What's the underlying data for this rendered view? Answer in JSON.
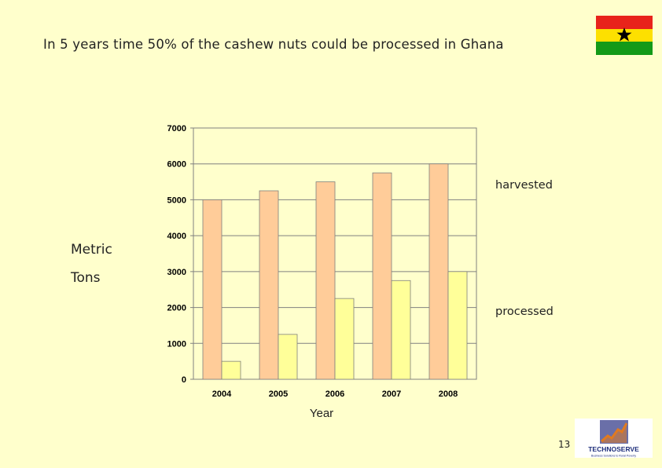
{
  "slide": {
    "title": "In 5 years time 50% of the cashew nuts could be processed in Ghana",
    "page_number": "13",
    "ylabel_line1": "Metric",
    "ylabel_line2": "Tons",
    "xlabel": "Year",
    "harvested_label": "harvested",
    "processed_label": "processed"
  },
  "flag": {
    "icon": "ghana-flag-icon",
    "colors": [
      "#e8231b",
      "#fde000",
      "#139a18"
    ],
    "star_color": "#000000"
  },
  "logo": {
    "icon": "technoserve-logo-icon",
    "text": "TECHNOSERVE",
    "tagline": "Business Solutions to Rural Poverty",
    "colors": {
      "text": "#1d2d7a",
      "graph": "#e07a20",
      "box": "#6a6fa8"
    }
  },
  "chart_data": {
    "type": "bar",
    "categories": [
      "2004",
      "2005",
      "2006",
      "2007",
      "2008"
    ],
    "series": [
      {
        "name": "harvested",
        "values": [
          5000,
          5250,
          5500,
          5750,
          6000
        ],
        "color": "#ffcc99"
      },
      {
        "name": "processed",
        "values": [
          500,
          1250,
          2250,
          2750,
          3000
        ],
        "color": "#ffff99"
      }
    ],
    "yticks": [
      0,
      1000,
      2000,
      3000,
      4000,
      5000,
      6000,
      7000
    ],
    "ylim": [
      0,
      7000
    ],
    "xlabel": "Year",
    "ylabel": "Metric Tons",
    "grid": true,
    "legend": "none"
  }
}
